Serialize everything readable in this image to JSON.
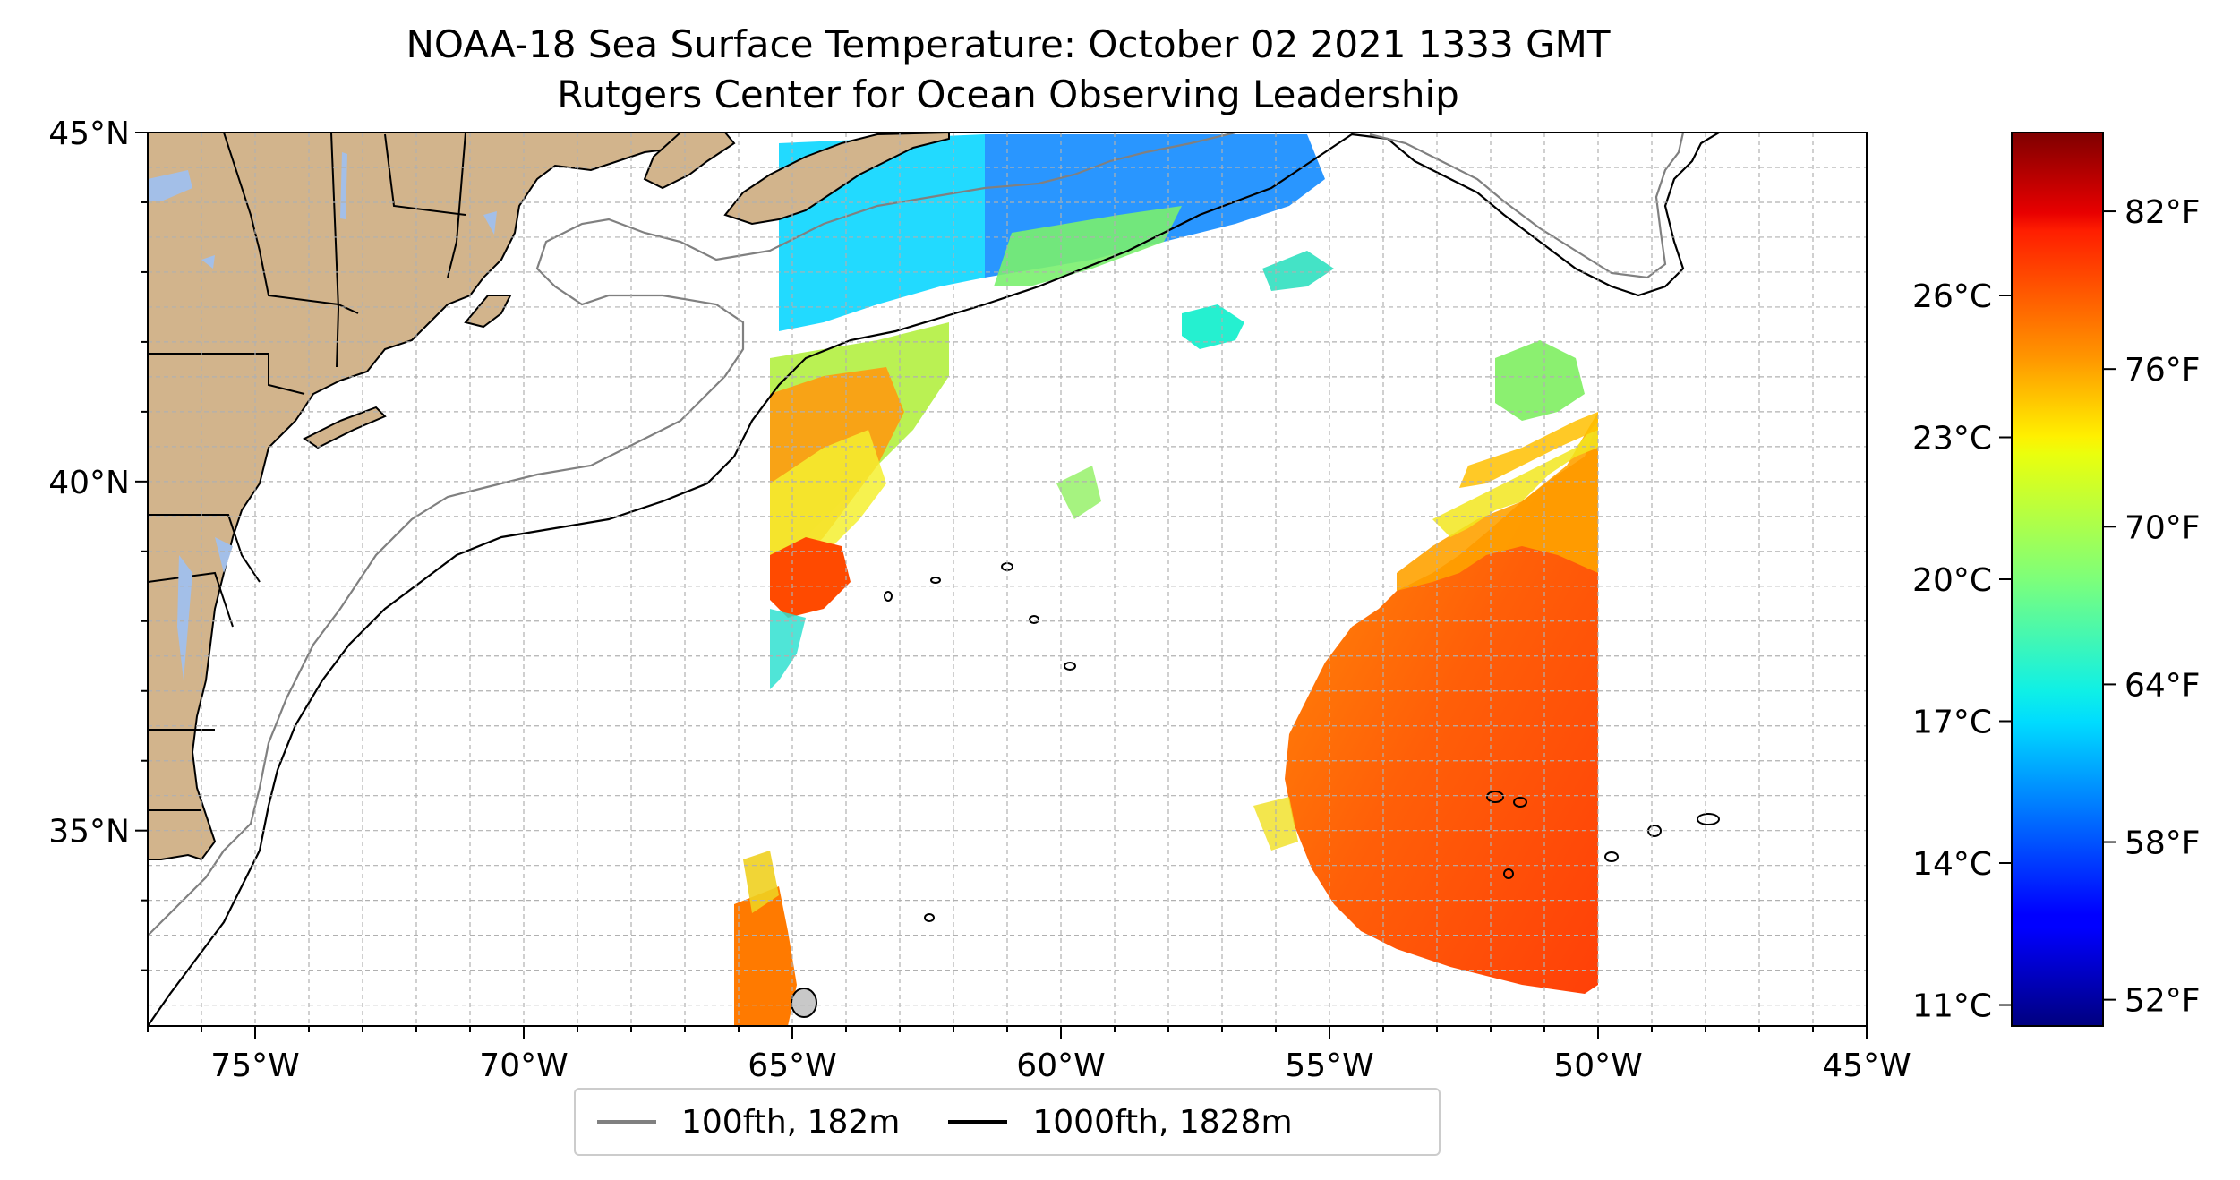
{
  "title": "NOAA-18 Sea Surface Temperature: October 02 2021 1333 GMT",
  "subtitle": "Rutgers Center for Ocean Observing Leadership",
  "map": {
    "lon_range": [
      -77,
      -45
    ],
    "lat_range": [
      32.2,
      45
    ],
    "lon_ticks": [
      {
        "value": -75,
        "label": "75°W"
      },
      {
        "value": -70,
        "label": "70°W"
      },
      {
        "value": -65,
        "label": "65°W"
      },
      {
        "value": -60,
        "label": "60°W"
      },
      {
        "value": -55,
        "label": "55°W"
      },
      {
        "value": -50,
        "label": "50°W"
      },
      {
        "value": -45,
        "label": "45°W"
      }
    ],
    "lat_ticks": [
      {
        "value": 45,
        "label": "45°N"
      },
      {
        "value": 40,
        "label": "40°N"
      },
      {
        "value": 35,
        "label": "35°N"
      }
    ],
    "gridlines": true,
    "land_color": "#d2b48c",
    "water_feature_color": "#a3bfe8"
  },
  "colorbar": {
    "colormap": "jet",
    "range_f": [
      51,
      85
    ],
    "f_ticks": [
      {
        "value": 52,
        "label": "52°F"
      },
      {
        "value": 58,
        "label": "58°F"
      },
      {
        "value": 64,
        "label": "64°F"
      },
      {
        "value": 70,
        "label": "70°F"
      },
      {
        "value": 76,
        "label": "76°F"
      },
      {
        "value": 82,
        "label": "82°F"
      }
    ],
    "c_ticks": [
      {
        "value": 11,
        "label": "11°C"
      },
      {
        "value": 14,
        "label": "14°C"
      },
      {
        "value": 17,
        "label": "17°C"
      },
      {
        "value": 20,
        "label": "20°C"
      },
      {
        "value": 23,
        "label": "23°C"
      },
      {
        "value": 26,
        "label": "26°C"
      }
    ]
  },
  "legend": {
    "entries": [
      {
        "label": "100fth, 182m",
        "color": "#808080"
      },
      {
        "label": "1000fth, 1828m",
        "color": "#000000"
      }
    ]
  }
}
